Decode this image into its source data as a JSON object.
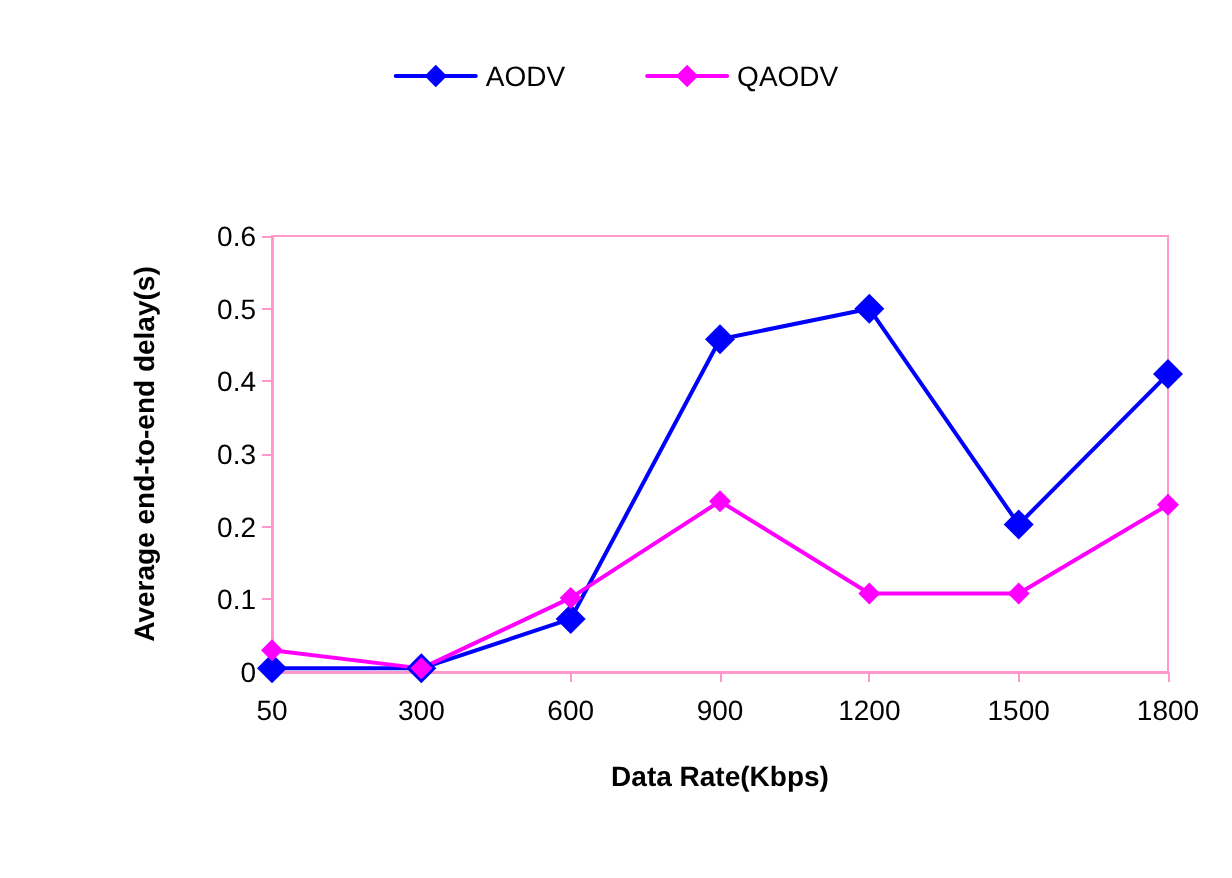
{
  "chart_data": {
    "type": "line",
    "xlabel": "Data Rate(Kbps)",
    "ylabel": "Average end-to-end delay(s)",
    "categories": [
      "50",
      "300",
      "600",
      "900",
      "1200",
      "1500",
      "1800"
    ],
    "series": [
      {
        "name": "AODV",
        "color": "#0000ff",
        "values": [
          0.005,
          0.005,
          0.073,
          0.458,
          0.5,
          0.203,
          0.41
        ]
      },
      {
        "name": "QAODV",
        "color": "#ff00ff",
        "values": [
          0.03,
          0.005,
          0.102,
          0.235,
          0.108,
          0.108,
          0.23
        ]
      }
    ],
    "ylim": [
      0,
      0.6
    ],
    "yticks": [
      0,
      0.1,
      0.2,
      0.3,
      0.4,
      0.5,
      0.6
    ],
    "grid": false,
    "legend": "top",
    "marker": "diamond",
    "line_style": "solid"
  }
}
